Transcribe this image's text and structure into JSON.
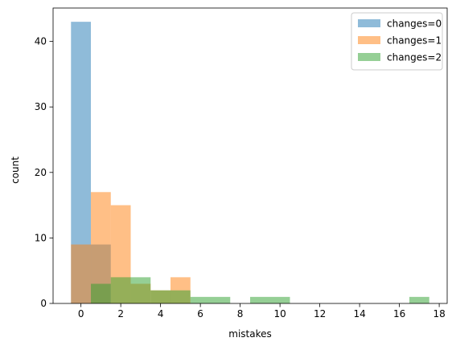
{
  "chart_data": {
    "type": "bar",
    "title": "",
    "xlabel": "mistakes",
    "ylabel": "count",
    "xlim": [
      -1.4,
      18.4
    ],
    "ylim": [
      0,
      45.1
    ],
    "x_ticks": [
      0,
      2,
      4,
      6,
      8,
      10,
      12,
      14,
      16,
      18
    ],
    "y_ticks": [
      0,
      10,
      20,
      30,
      40
    ],
    "legend_position": "top-right",
    "grid": false,
    "series": [
      {
        "name": "changes=0",
        "color": "#1f77b4",
        "opacity": 0.5,
        "bins": [
          {
            "x0": -0.5,
            "x1": 0.5,
            "count": 43
          },
          {
            "x0": 0.5,
            "x1": 1.5,
            "count": 9
          }
        ]
      },
      {
        "name": "changes=1",
        "color": "#ff7f0e",
        "opacity": 0.5,
        "bins": [
          {
            "x0": -0.5,
            "x1": 0.5,
            "count": 9
          },
          {
            "x0": 0.5,
            "x1": 1.5,
            "count": 17
          },
          {
            "x0": 1.5,
            "x1": 2.5,
            "count": 15
          },
          {
            "x0": 2.5,
            "x1": 3.5,
            "count": 3
          },
          {
            "x0": 3.5,
            "x1": 4.5,
            "count": 2
          },
          {
            "x0": 4.5,
            "x1": 5.5,
            "count": 4
          }
        ]
      },
      {
        "name": "changes=2",
        "color": "#2ca02c",
        "opacity": 0.5,
        "bins": [
          {
            "x0": 0.5,
            "x1": 1.5,
            "count": 3
          },
          {
            "x0": 1.5,
            "x1": 2.5,
            "count": 4
          },
          {
            "x0": 2.5,
            "x1": 3.5,
            "count": 4
          },
          {
            "x0": 3.5,
            "x1": 4.5,
            "count": 2
          },
          {
            "x0": 4.5,
            "x1": 5.5,
            "count": 2
          },
          {
            "x0": 5.5,
            "x1": 7.5,
            "count": 1
          },
          {
            "x0": 8.5,
            "x1": 10.5,
            "count": 1
          },
          {
            "x0": 16.5,
            "x1": 17.5,
            "count": 1
          }
        ]
      }
    ]
  }
}
